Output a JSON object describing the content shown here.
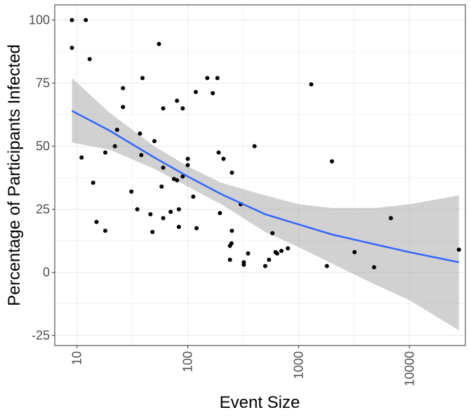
{
  "chart_data": {
    "type": "scatter",
    "title": "",
    "xlabel": "Event Size",
    "ylabel": "Percentage of Participants Infected",
    "x_scale": "log10",
    "xlim": [
      6.3,
      32000
    ],
    "ylim": [
      -29,
      106
    ],
    "x_ticks": [
      10,
      100,
      1000,
      10000
    ],
    "x_tick_labels": [
      "10",
      "100",
      "1000",
      "10000"
    ],
    "y_ticks": [
      -25,
      0,
      25,
      50,
      75,
      100
    ],
    "y_tick_labels": [
      "-25",
      "0",
      "25",
      "50",
      "75",
      "100"
    ],
    "grid": true,
    "legend": "none",
    "colors": {
      "points": "#000000",
      "fit_line": "#3366ff",
      "ribbon": "#999999",
      "grid": "#ebebeb",
      "panel_border": "#333333"
    },
    "points": [
      {
        "x": 9,
        "y": 100
      },
      {
        "x": 12,
        "y": 100
      },
      {
        "x": 9,
        "y": 89
      },
      {
        "x": 13,
        "y": 84.5
      },
      {
        "x": 55,
        "y": 90.5
      },
      {
        "x": 1300,
        "y": 74.5
      },
      {
        "x": 39,
        "y": 77
      },
      {
        "x": 150,
        "y": 77
      },
      {
        "x": 185,
        "y": 77
      },
      {
        "x": 26,
        "y": 73
      },
      {
        "x": 118,
        "y": 71.5
      },
      {
        "x": 168,
        "y": 71
      },
      {
        "x": 80,
        "y": 68
      },
      {
        "x": 26,
        "y": 65.5
      },
      {
        "x": 60,
        "y": 65
      },
      {
        "x": 90,
        "y": 65
      },
      {
        "x": 23,
        "y": 56.5
      },
      {
        "x": 37,
        "y": 55
      },
      {
        "x": 50,
        "y": 52
      },
      {
        "x": 22,
        "y": 50
      },
      {
        "x": 400,
        "y": 50
      },
      {
        "x": 18,
        "y": 47.5
      },
      {
        "x": 190,
        "y": 47.5
      },
      {
        "x": 11,
        "y": 45.5
      },
      {
        "x": 38,
        "y": 46.5
      },
      {
        "x": 100,
        "y": 45
      },
      {
        "x": 210,
        "y": 45
      },
      {
        "x": 2000,
        "y": 44
      },
      {
        "x": 100,
        "y": 42.5
      },
      {
        "x": 60,
        "y": 41.5
      },
      {
        "x": 250,
        "y": 39.5
      },
      {
        "x": 90,
        "y": 38
      },
      {
        "x": 75,
        "y": 37
      },
      {
        "x": 80,
        "y": 36.5
      },
      {
        "x": 14,
        "y": 35.5
      },
      {
        "x": 58,
        "y": 34
      },
      {
        "x": 31,
        "y": 32
      },
      {
        "x": 112,
        "y": 30
      },
      {
        "x": 300,
        "y": 27
      },
      {
        "x": 35,
        "y": 25
      },
      {
        "x": 83,
        "y": 25
      },
      {
        "x": 70,
        "y": 24
      },
      {
        "x": 195,
        "y": 23.5
      },
      {
        "x": 46,
        "y": 23
      },
      {
        "x": 60,
        "y": 21.5
      },
      {
        "x": 6800,
        "y": 21.5
      },
      {
        "x": 15,
        "y": 20
      },
      {
        "x": 83,
        "y": 18
      },
      {
        "x": 120,
        "y": 17.5
      },
      {
        "x": 18,
        "y": 16.5
      },
      {
        "x": 250,
        "y": 16.5
      },
      {
        "x": 48,
        "y": 16
      },
      {
        "x": 580,
        "y": 15.5
      },
      {
        "x": 248,
        "y": 11.5
      },
      {
        "x": 240,
        "y": 10.5
      },
      {
        "x": 800,
        "y": 9.5
      },
      {
        "x": 700,
        "y": 8.5
      },
      {
        "x": 620,
        "y": 8
      },
      {
        "x": 640,
        "y": 7.5
      },
      {
        "x": 3200,
        "y": 8
      },
      {
        "x": 350,
        "y": 7.5
      },
      {
        "x": 28000,
        "y": 9
      },
      {
        "x": 240,
        "y": 5
      },
      {
        "x": 540,
        "y": 5
      },
      {
        "x": 320,
        "y": 4
      },
      {
        "x": 320,
        "y": 3
      },
      {
        "x": 500,
        "y": 2.5
      },
      {
        "x": 1800,
        "y": 2.5
      },
      {
        "x": 4800,
        "y": 2
      }
    ],
    "fit_line": [
      {
        "x": 9,
        "y": 64
      },
      {
        "x": 20,
        "y": 56
      },
      {
        "x": 50,
        "y": 45.5
      },
      {
        "x": 100,
        "y": 38
      },
      {
        "x": 200,
        "y": 31
      },
      {
        "x": 500,
        "y": 23
      },
      {
        "x": 1000,
        "y": 19
      },
      {
        "x": 2000,
        "y": 15
      },
      {
        "x": 5000,
        "y": 11
      },
      {
        "x": 10000,
        "y": 8
      },
      {
        "x": 28000,
        "y": 4
      }
    ],
    "ribbon_upper": [
      {
        "x": 9,
        "y": 77
      },
      {
        "x": 20,
        "y": 63
      },
      {
        "x": 50,
        "y": 50
      },
      {
        "x": 100,
        "y": 42
      },
      {
        "x": 200,
        "y": 35.5
      },
      {
        "x": 500,
        "y": 30.5
      },
      {
        "x": 1000,
        "y": 27
      },
      {
        "x": 2000,
        "y": 25.5
      },
      {
        "x": 5000,
        "y": 25.5
      },
      {
        "x": 10000,
        "y": 27
      },
      {
        "x": 28000,
        "y": 30.5
      }
    ],
    "ribbon_lower": [
      {
        "x": 9,
        "y": 51.5
      },
      {
        "x": 20,
        "y": 48.5
      },
      {
        "x": 50,
        "y": 41
      },
      {
        "x": 100,
        "y": 34
      },
      {
        "x": 200,
        "y": 27
      },
      {
        "x": 500,
        "y": 16
      },
      {
        "x": 1000,
        "y": 10
      },
      {
        "x": 2000,
        "y": 3.5
      },
      {
        "x": 5000,
        "y": -5
      },
      {
        "x": 10000,
        "y": -11
      },
      {
        "x": 28000,
        "y": -23
      }
    ]
  }
}
